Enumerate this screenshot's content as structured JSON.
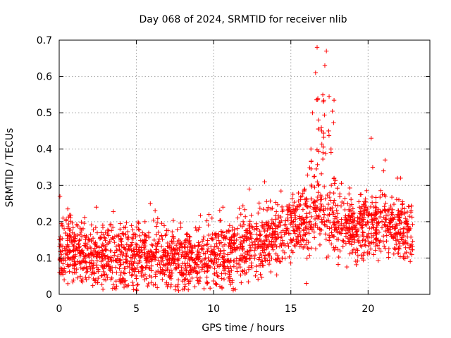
{
  "chart_data": {
    "type": "scatter",
    "title": "Day 068 of 2024, SRMTID for receiver nlib",
    "xlabel": "GPS time / hours",
    "ylabel": "SRMTID / TECUs",
    "xlim": [
      0,
      24
    ],
    "ylim": [
      0,
      0.7
    ],
    "xticks": [
      0,
      5,
      10,
      15,
      20
    ],
    "xtick_labels": [
      "0",
      "5",
      "10",
      "15",
      "20"
    ],
    "yticks": [
      0,
      0.1,
      0.2,
      0.3,
      0.4,
      0.5,
      0.6,
      0.7
    ],
    "ytick_labels": [
      "0",
      "0.1",
      "0.2",
      "0.3",
      "0.4",
      "0.5",
      "0.6",
      "0.7"
    ],
    "grid": true,
    "marker": "+",
    "color": "#ff0000",
    "x_range_of_data": [
      0,
      22.9
    ],
    "baseline_profile": [
      {
        "x": 0,
        "y": 0.13
      },
      {
        "x": 2,
        "y": 0.11
      },
      {
        "x": 5,
        "y": 0.1
      },
      {
        "x": 8,
        "y": 0.1
      },
      {
        "x": 11,
        "y": 0.11
      },
      {
        "x": 12.5,
        "y": 0.14
      },
      {
        "x": 14,
        "y": 0.16
      },
      {
        "x": 15.5,
        "y": 0.19
      },
      {
        "x": 17,
        "y": 0.22
      },
      {
        "x": 19,
        "y": 0.18
      },
      {
        "x": 21,
        "y": 0.2
      },
      {
        "x": 22.9,
        "y": 0.17
      }
    ],
    "spread": 0.045,
    "point_count": 2300,
    "notable_points": [
      {
        "x": 0.05,
        "y": 0.27
      },
      {
        "x": 2.4,
        "y": 0.24
      },
      {
        "x": 5.9,
        "y": 0.25
      },
      {
        "x": 9.7,
        "y": 0.22
      },
      {
        "x": 10.6,
        "y": 0.24
      },
      {
        "x": 12.3,
        "y": 0.29
      },
      {
        "x": 13.3,
        "y": 0.31
      },
      {
        "x": 15.9,
        "y": 0.29
      },
      {
        "x": 16.3,
        "y": 0.4
      },
      {
        "x": 16.4,
        "y": 0.5
      },
      {
        "x": 16.6,
        "y": 0.61
      },
      {
        "x": 16.7,
        "y": 0.68
      },
      {
        "x": 17.0,
        "y": 0.45
      },
      {
        "x": 17.1,
        "y": 0.53
      },
      {
        "x": 17.2,
        "y": 0.63
      },
      {
        "x": 17.3,
        "y": 0.67
      },
      {
        "x": 17.45,
        "y": 0.45
      },
      {
        "x": 17.6,
        "y": 0.4
      },
      {
        "x": 17.8,
        "y": 0.32
      },
      {
        "x": 20.2,
        "y": 0.43
      },
      {
        "x": 20.3,
        "y": 0.35
      },
      {
        "x": 21.0,
        "y": 0.34
      },
      {
        "x": 21.1,
        "y": 0.37
      },
      {
        "x": 21.9,
        "y": 0.32
      },
      {
        "x": 22.1,
        "y": 0.32
      },
      {
        "x": 16.0,
        "y": 0.03
      },
      {
        "x": 8.1,
        "y": 0.015
      }
    ]
  }
}
